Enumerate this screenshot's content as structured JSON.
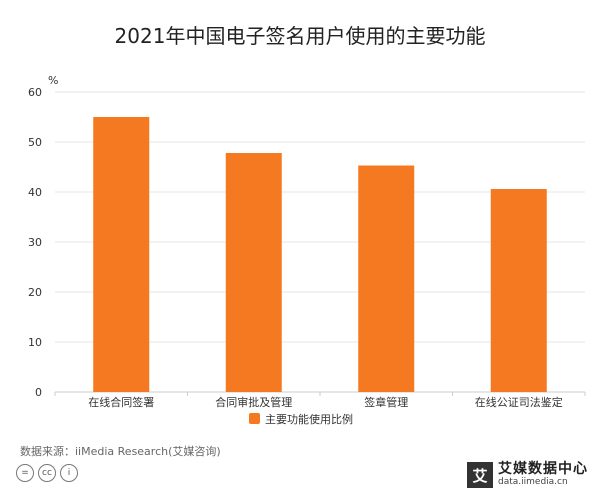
{
  "title": "2021年中国电子签名用户使用的主要功能",
  "source": "数据来源：iiMedia Research(艾媒咨询)",
  "cc_icons": [
    "=",
    "cc",
    "i"
  ],
  "brand": {
    "logo": "艾",
    "name": "艾媒数据中心",
    "url": "data.iimedia.cn"
  },
  "colors": {
    "bar": "#f47920",
    "grid": "#e6e6e6",
    "axis": "#cccccc"
  },
  "chart_data": {
    "type": "bar",
    "title": "2021年中国电子签名用户使用的主要功能",
    "categories": [
      "在线合同签署",
      "合同审批及管理",
      "签章管理",
      "在线公证司法鉴定"
    ],
    "series": [
      {
        "name": "主要功能使用比例",
        "values": [
          55.0,
          47.8,
          45.3,
          40.6
        ]
      }
    ],
    "unit": "%",
    "ylim": [
      0,
      60
    ],
    "yticks": [
      0,
      10,
      20,
      30,
      40,
      50,
      60
    ],
    "grid": true,
    "legend": "bottom"
  }
}
